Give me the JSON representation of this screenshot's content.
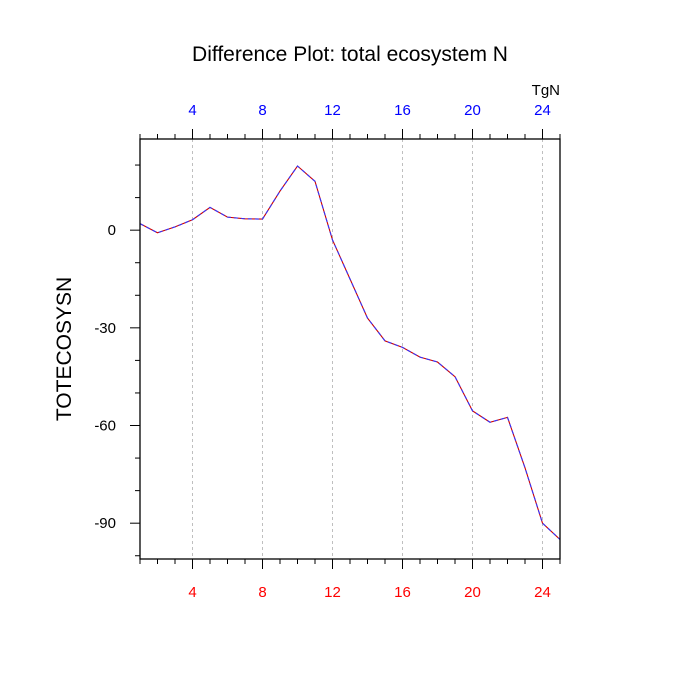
{
  "chart_data": {
    "type": "line",
    "title": "Difference Plot: total ecosystem N",
    "units": "TgN",
    "ylabel": "TOTECOSYSN",
    "xlim": [
      1,
      25
    ],
    "ylim": [
      -101,
      28
    ],
    "x_ticks": [
      4,
      8,
      12,
      16,
      20,
      24
    ],
    "y_ticks": [
      0,
      -30,
      -60,
      -90
    ],
    "y_ticks_minor": [
      20,
      10,
      -10,
      -20,
      -40,
      -50,
      -70,
      -80,
      -100
    ],
    "grid": "vertical dashed at major x ticks",
    "colors": {
      "line_primary": "#3333ff",
      "line_secondary": "#cc0000",
      "top_axis_labels": "#0000ff",
      "bottom_axis_labels": "#ff0000",
      "grid": "#b0b0b0"
    },
    "x": [
      1,
      2,
      3,
      4,
      5,
      6,
      7,
      8,
      9,
      10,
      11,
      12,
      13,
      14,
      15,
      16,
      17,
      18,
      19,
      20,
      21,
      22,
      23,
      24,
      25
    ],
    "series": [
      {
        "values": [
          2,
          -0.8,
          1,
          3.2,
          7,
          4,
          3.5,
          3.4,
          12,
          19.7,
          15,
          -3,
          -15,
          -27,
          -34,
          -36,
          -39,
          -40.5,
          -45,
          -55.5,
          -59,
          -57.5,
          -73,
          -90,
          -95
        ]
      }
    ]
  }
}
